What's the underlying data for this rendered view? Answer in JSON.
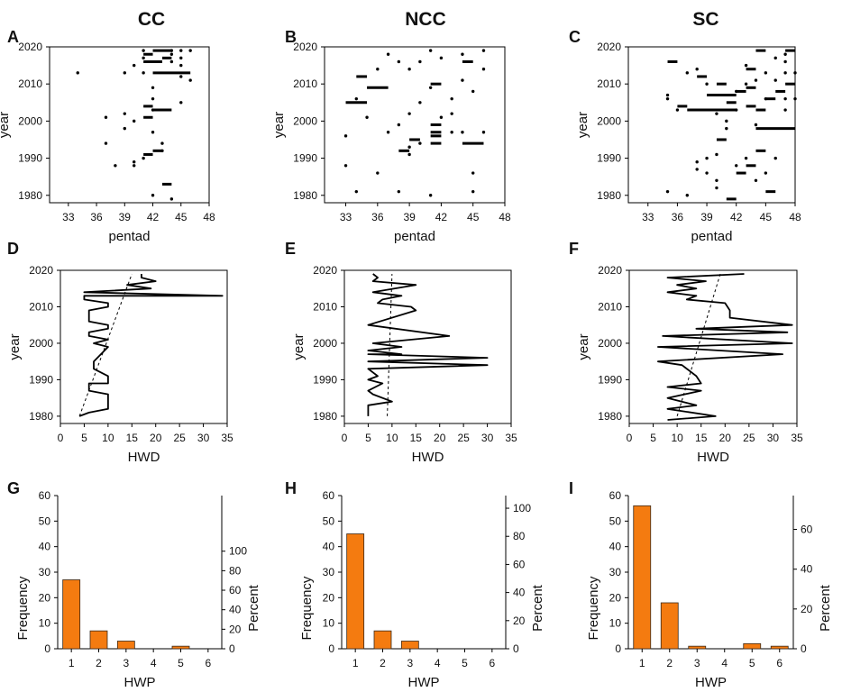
{
  "columns": [
    "CC",
    "NCC",
    "SC"
  ],
  "chart_data": [
    {
      "panel": "A",
      "type": "scatter",
      "xlabel": "pentad",
      "ylabel": "year",
      "xlim": [
        31,
        48
      ],
      "ylim": [
        1978,
        2020
      ],
      "xticks": [
        "33",
        "36",
        "39",
        "42",
        "45",
        "48"
      ],
      "yticks": [
        "1980",
        "1990",
        "2000",
        "2010",
        "2020"
      ],
      "points": [
        [
          34,
          2013
        ],
        [
          37,
          2001
        ],
        [
          37,
          1994
        ],
        [
          38,
          1988
        ],
        [
          39,
          2002
        ],
        [
          39,
          1998
        ],
        [
          39,
          2013
        ],
        [
          40,
          2000
        ],
        [
          40,
          1989
        ],
        [
          40,
          1988
        ],
        [
          40,
          2015
        ],
        [
          41,
          2019
        ],
        [
          41,
          2017
        ],
        [
          41,
          1990
        ],
        [
          41,
          2013
        ],
        [
          42,
          1980
        ],
        [
          42,
          2003
        ],
        [
          42,
          1997
        ],
        [
          42,
          2009
        ],
        [
          42,
          2006
        ],
        [
          43,
          1992
        ],
        [
          43,
          1994
        ],
        [
          44,
          1979
        ],
        [
          44,
          2016
        ],
        [
          44,
          2019
        ],
        [
          44,
          2018
        ],
        [
          45,
          2012
        ],
        [
          45,
          2005
        ],
        [
          46,
          2019
        ],
        [
          46,
          2011
        ],
        [
          45,
          2019
        ],
        [
          45,
          2017
        ],
        [
          45,
          2015
        ]
      ],
      "segments": [
        [
          41,
          42,
          2018
        ],
        [
          41,
          43,
          2016
        ],
        [
          42,
          44,
          2019
        ],
        [
          43,
          44,
          2017
        ],
        [
          42,
          46,
          2013
        ],
        [
          42,
          44,
          2003
        ],
        [
          41,
          42,
          2001
        ],
        [
          41,
          42,
          2004
        ],
        [
          42,
          43,
          1992
        ],
        [
          41,
          42,
          1991
        ],
        [
          43,
          44,
          1983
        ]
      ]
    },
    {
      "panel": "B",
      "type": "scatter",
      "xlabel": "pentad",
      "ylabel": "year",
      "xlim": [
        31,
        48
      ],
      "ylim": [
        1978,
        2020
      ],
      "xticks": [
        "33",
        "36",
        "39",
        "42",
        "45",
        "48"
      ],
      "yticks": [
        "1980",
        "1990",
        "2000",
        "2010",
        "2020"
      ],
      "points": [
        [
          33,
          1996
        ],
        [
          33,
          1988
        ],
        [
          34,
          1981
        ],
        [
          34,
          2006
        ],
        [
          35,
          2001
        ],
        [
          36,
          1986
        ],
        [
          36,
          2014
        ],
        [
          37,
          2018
        ],
        [
          37,
          1997
        ],
        [
          38,
          2016
        ],
        [
          38,
          1999
        ],
        [
          38,
          1981
        ],
        [
          39,
          2002
        ],
        [
          39,
          1993
        ],
        [
          39,
          1991
        ],
        [
          39,
          2014
        ],
        [
          40,
          2016
        ],
        [
          40,
          2005
        ],
        [
          40,
          1994
        ],
        [
          41,
          2019
        ],
        [
          41,
          1980
        ],
        [
          41,
          2009
        ],
        [
          42,
          2017
        ],
        [
          42,
          2001
        ],
        [
          43,
          2002
        ],
        [
          43,
          2006
        ],
        [
          43,
          1997
        ],
        [
          44,
          2018
        ],
        [
          44,
          2011
        ],
        [
          44,
          1997
        ],
        [
          45,
          2008
        ],
        [
          45,
          1986
        ],
        [
          45,
          1981
        ],
        [
          46,
          2019
        ],
        [
          46,
          1997
        ],
        [
          46,
          2014
        ]
      ],
      "segments": [
        [
          33,
          35,
          2005
        ],
        [
          34,
          35,
          2012
        ],
        [
          35,
          37,
          2009
        ],
        [
          38,
          39,
          1992
        ],
        [
          39,
          40,
          1995
        ],
        [
          41,
          42,
          2010
        ],
        [
          41,
          42,
          1999
        ],
        [
          41,
          42,
          1997
        ],
        [
          41,
          42,
          1996
        ],
        [
          41,
          42,
          1994
        ],
        [
          44,
          45,
          2016
        ],
        [
          44,
          46,
          1994
        ]
      ]
    },
    {
      "panel": "C",
      "type": "scatter",
      "xlabel": "pentad",
      "ylabel": "year",
      "xlim": [
        31,
        48
      ],
      "ylim": [
        1978,
        2020
      ],
      "xticks": [
        "33",
        "36",
        "39",
        "42",
        "45",
        "48"
      ],
      "yticks": [
        "1980",
        "1990",
        "2000",
        "2010",
        "2020"
      ],
      "points": [
        [
          35,
          2007
        ],
        [
          35,
          2006
        ],
        [
          35,
          1981
        ],
        [
          36,
          2003
        ],
        [
          37,
          1980
        ],
        [
          37,
          2013
        ],
        [
          38,
          2014
        ],
        [
          38,
          1989
        ],
        [
          38,
          1987
        ],
        [
          39,
          2010
        ],
        [
          39,
          1990
        ],
        [
          39,
          1986
        ],
        [
          40,
          1984
        ],
        [
          40,
          1991
        ],
        [
          40,
          2002
        ],
        [
          40,
          1982
        ],
        [
          41,
          1998
        ],
        [
          41,
          2000
        ],
        [
          42,
          2008
        ],
        [
          42,
          2003
        ],
        [
          42,
          1988
        ],
        [
          43,
          2010
        ],
        [
          43,
          1990
        ],
        [
          43,
          2015
        ],
        [
          44,
          1984
        ],
        [
          44,
          1999
        ],
        [
          44,
          2011
        ],
        [
          45,
          2006
        ],
        [
          45,
          2013
        ],
        [
          45,
          1986
        ],
        [
          46,
          2011
        ],
        [
          46,
          2017
        ],
        [
          46,
          1990
        ],
        [
          47,
          2013
        ],
        [
          47,
          2006
        ],
        [
          47,
          2018
        ],
        [
          47,
          2003
        ],
        [
          47,
          2016
        ],
        [
          48,
          2013
        ],
        [
          48,
          2006
        ]
      ],
      "segments": [
        [
          35,
          36,
          2016
        ],
        [
          36,
          37,
          2004
        ],
        [
          38,
          39,
          2012
        ],
        [
          37,
          42,
          2003
        ],
        [
          39,
          42,
          2007
        ],
        [
          40,
          41,
          2010
        ],
        [
          42,
          43,
          2008
        ],
        [
          41,
          42,
          2005
        ],
        [
          43,
          44,
          2009
        ],
        [
          43,
          44,
          2004
        ],
        [
          44,
          45,
          2003
        ],
        [
          44,
          45,
          2019
        ],
        [
          43,
          44,
          2014
        ],
        [
          46,
          47,
          2008
        ],
        [
          45,
          46,
          2006
        ],
        [
          47,
          48,
          2019
        ],
        [
          47,
          48,
          2010
        ],
        [
          44,
          48,
          1998
        ],
        [
          40,
          41,
          1995
        ],
        [
          44,
          45,
          1992
        ],
        [
          43,
          44,
          1988
        ],
        [
          42,
          43,
          1986
        ],
        [
          41,
          42,
          1979
        ],
        [
          45,
          46,
          1981
        ]
      ]
    },
    {
      "panel": "D",
      "type": "line",
      "xlabel": "HWD",
      "ylabel": "year",
      "xlim": [
        0,
        35
      ],
      "ylim": [
        1978,
        2020
      ],
      "xticks": [
        "0",
        "5",
        "10",
        "15",
        "20",
        "25",
        "30",
        "35"
      ],
      "yticks": [
        "1980",
        "1990",
        "2000",
        "2010",
        "2020"
      ],
      "series": [
        {
          "name": "HWD",
          "x": [
            4,
            6,
            10,
            10,
            6,
            6,
            10,
            10,
            7,
            7,
            10,
            7,
            10,
            6,
            6,
            10,
            10,
            6,
            6,
            10,
            10,
            5,
            5,
            34,
            5,
            19,
            14,
            20,
            17,
            17
          ],
          "y": [
            1980,
            1981,
            1982,
            1986,
            1987,
            1989,
            1989,
            1991,
            1993,
            1995,
            1999,
            2000,
            2001,
            2002,
            2003,
            2004,
            2005,
            2006,
            2009,
            2010,
            2011,
            2012,
            2013,
            2013,
            2014,
            2015,
            2016,
            2017,
            2018,
            2019
          ]
        }
      ],
      "trend": {
        "x": [
          4,
          15
        ],
        "y": [
          1980,
          2019
        ]
      }
    },
    {
      "panel": "E",
      "type": "line",
      "xlabel": "HWD",
      "ylabel": "year",
      "xlim": [
        0,
        35
      ],
      "ylim": [
        1978,
        2020
      ],
      "xticks": [
        "0",
        "5",
        "10",
        "15",
        "20",
        "25",
        "30",
        "35"
      ],
      "yticks": [
        "1980",
        "1990",
        "2000",
        "2010",
        "2020"
      ],
      "series": [
        {
          "name": "HWD",
          "x": [
            5,
            5,
            10,
            6,
            5,
            8,
            5,
            7,
            5,
            30,
            5,
            30,
            5,
            12,
            5,
            12,
            6,
            22,
            5,
            15,
            14,
            7,
            8,
            12,
            6,
            15,
            6,
            7,
            6
          ],
          "y": [
            1980,
            1983,
            1984,
            1986,
            1987,
            1989,
            1990,
            1991,
            1993,
            1994,
            1995,
            1996,
            1997,
            1997,
            1998,
            1999,
            2000,
            2002,
            2005,
            2009,
            2010,
            2011,
            2012,
            2013,
            2014,
            2016,
            2017,
            2018,
            2019
          ]
        }
      ],
      "trend": {
        "x": [
          9,
          10
        ],
        "y": [
          1980,
          2019
        ]
      }
    },
    {
      "panel": "F",
      "type": "line",
      "xlabel": "HWD",
      "ylabel": "year",
      "xlim": [
        0,
        35
      ],
      "ylim": [
        1978,
        2020
      ],
      "xticks": [
        "0",
        "5",
        "10",
        "15",
        "20",
        "25",
        "30",
        "35"
      ],
      "yticks": [
        "1980",
        "1990",
        "2000",
        "2010",
        "2020"
      ],
      "series": [
        {
          "name": "HWD",
          "x": [
            8,
            18,
            8,
            14,
            8,
            15,
            8,
            15,
            14,
            11,
            6,
            32,
            6,
            34,
            7,
            33,
            14,
            34,
            21,
            21,
            20,
            12,
            14,
            8,
            14,
            10,
            16,
            8,
            24
          ],
          "y": [
            1979,
            1980,
            1982,
            1983,
            1985,
            1987,
            1988,
            1989,
            1991,
            1994,
            1995,
            1997,
            1999,
            2000,
            2002,
            2003,
            2004,
            2005,
            2007,
            2009,
            2011,
            2012,
            2013,
            2014,
            2015,
            2016,
            2017,
            2018,
            2019
          ]
        }
      ],
      "trend": {
        "x": [
          10,
          19
        ],
        "y": [
          1980,
          2019
        ]
      }
    },
    {
      "panel": "G",
      "type": "bar",
      "xlabel": "HWP",
      "ylabel": "Frequency",
      "y2label": "Percent",
      "categories": [
        "1",
        "2",
        "3",
        "4",
        "5",
        "6"
      ],
      "values": [
        27,
        7,
        3,
        0,
        1,
        0
      ],
      "ylim": [
        0,
        60
      ],
      "yticks": [
        "0",
        "10",
        "20",
        "30",
        "40",
        "50",
        "60"
      ],
      "y2lim": [
        0,
        157
      ],
      "y2ticks": [
        "0",
        "20",
        "40",
        "60",
        "80",
        "100"
      ]
    },
    {
      "panel": "H",
      "type": "bar",
      "xlabel": "HWP",
      "ylabel": "Frequency",
      "y2label": "Percent",
      "categories": [
        "1",
        "2",
        "3",
        "4",
        "5",
        "6"
      ],
      "values": [
        45,
        7,
        3,
        0,
        0,
        0
      ],
      "ylim": [
        0,
        60
      ],
      "yticks": [
        "0",
        "10",
        "20",
        "30",
        "40",
        "50",
        "60"
      ],
      "y2lim": [
        0,
        109
      ],
      "y2ticks": [
        "0",
        "20",
        "40",
        "60",
        "80",
        "100"
      ]
    },
    {
      "panel": "I",
      "type": "bar",
      "xlabel": "HWP",
      "ylabel": "Frequency",
      "y2label": "Percent",
      "categories": [
        "1",
        "2",
        "3",
        "4",
        "5",
        "6"
      ],
      "values": [
        56,
        18,
        1,
        0,
        2,
        1
      ],
      "ylim": [
        0,
        60
      ],
      "yticks": [
        "0",
        "10",
        "20",
        "30",
        "40",
        "50",
        "60"
      ],
      "y2lim": [
        0,
        77
      ],
      "y2ticks": [
        "0",
        "20",
        "40",
        "60"
      ]
    }
  ]
}
